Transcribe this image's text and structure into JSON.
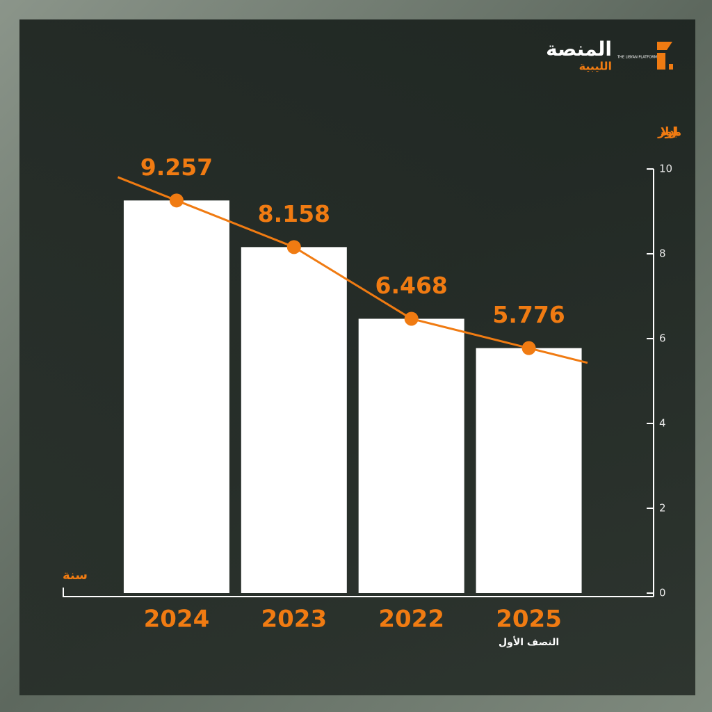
{
  "brand": {
    "name": "المنصة",
    "sub": "الليبية",
    "english": "THE LIBYAN PLATFORM"
  },
  "chart_data": {
    "type": "bar-line",
    "y_axis_label": "مليار دولار",
    "x_axis_label": "سنة",
    "categories": [
      "2024",
      "2023",
      "2022",
      "2025"
    ],
    "category_sublabels": [
      null,
      null,
      null,
      "النصف الأول"
    ],
    "values": [
      9.257,
      8.158,
      6.468,
      5.776
    ],
    "bar_color": "#ffffff",
    "line_color": "#f07b12",
    "ylim": [
      0,
      10
    ],
    "yticks": [
      0,
      2,
      4,
      6,
      8,
      10
    ]
  }
}
